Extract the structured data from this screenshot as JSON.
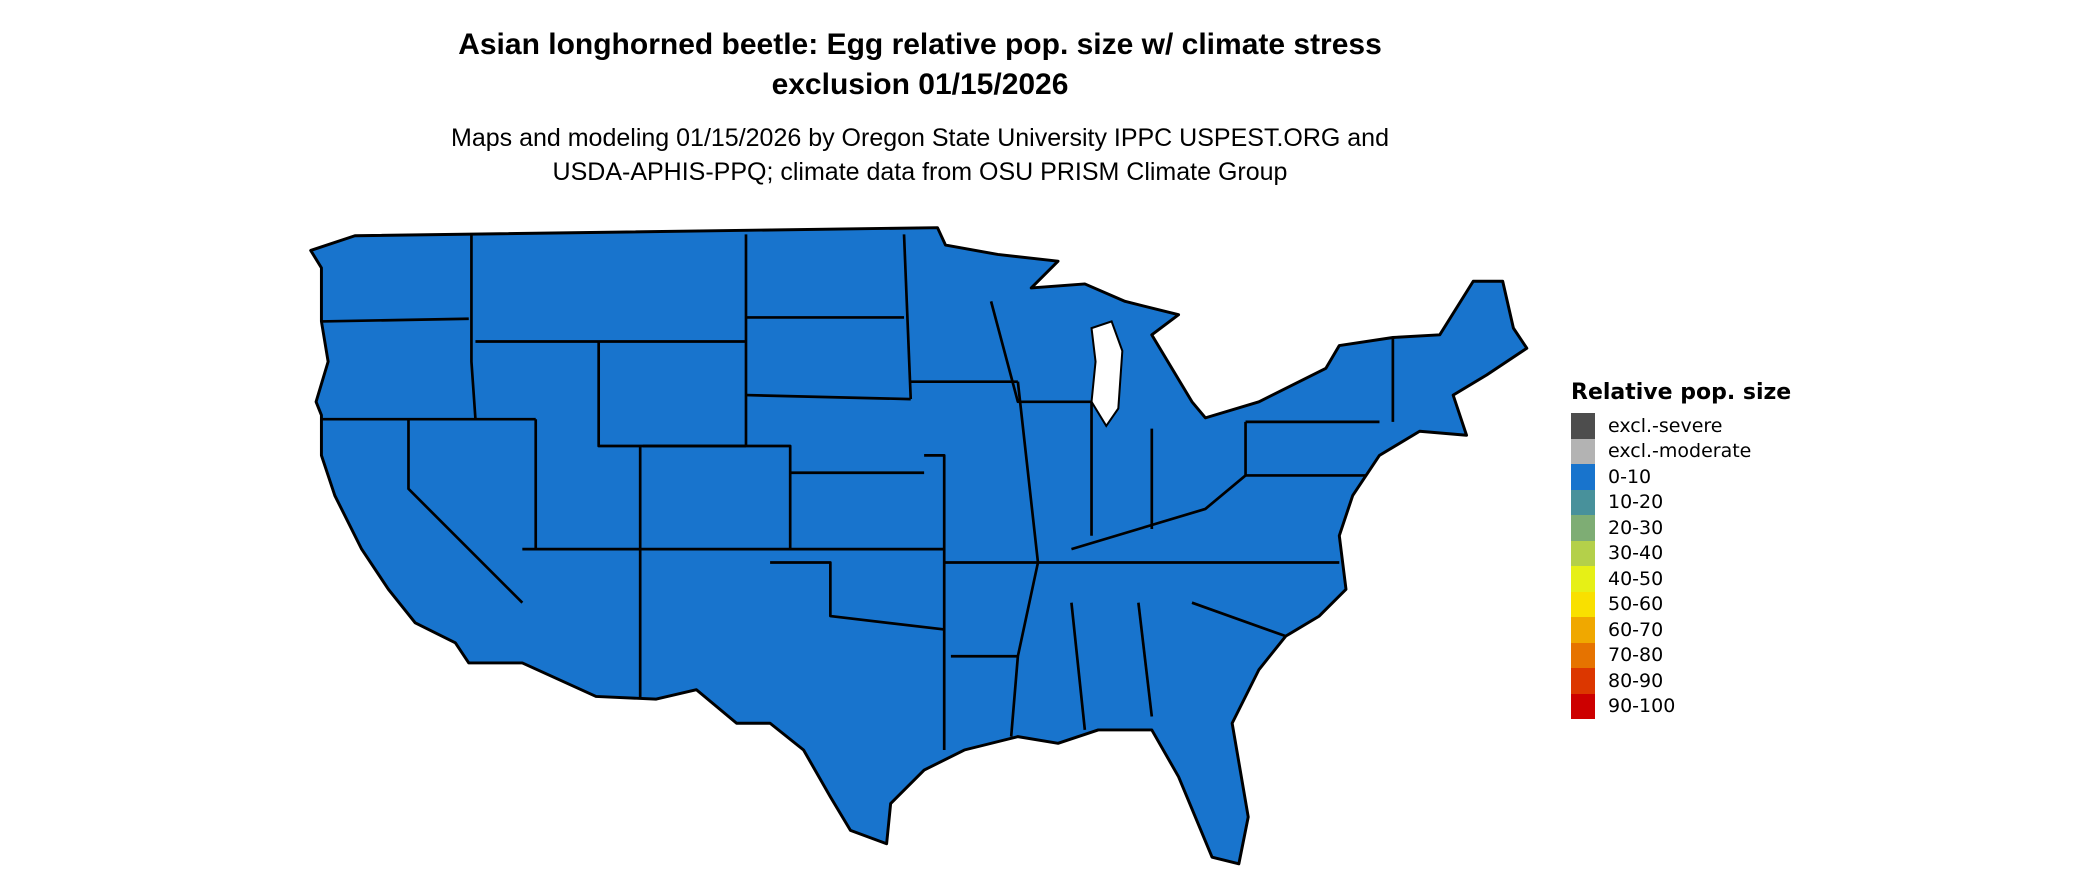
{
  "title_line1": "Asian longhorned beetle: Egg relative pop. size w/ climate stress",
  "title_line2": "exclusion 01/15/2026",
  "subtitle_line1": "Maps and modeling 01/15/2026 by Oregon State University IPPC USPEST.ORG and",
  "subtitle_line2": "USDA-APHIS-PPQ; climate data from OSU PRISM Climate Group",
  "map": {
    "region": "Contiguous United States",
    "fill_category": "0-10",
    "fill_color": "#1874CD",
    "border_color": "#000000"
  },
  "legend": {
    "title": "Relative pop. size",
    "items": [
      {
        "label": "excl.-severe",
        "color": "#4D4D4D"
      },
      {
        "label": "excl.-moderate",
        "color": "#B3B3B3"
      },
      {
        "label": "0-10",
        "color": "#1874CD"
      },
      {
        "label": "10-20",
        "color": "#48919B"
      },
      {
        "label": "20-30",
        "color": "#7EAD74"
      },
      {
        "label": "30-40",
        "color": "#B4D04A"
      },
      {
        "label": "40-50",
        "color": "#E6F016"
      },
      {
        "label": "50-60",
        "color": "#F9E000"
      },
      {
        "label": "60-70",
        "color": "#F0A800"
      },
      {
        "label": "70-80",
        "color": "#E67300"
      },
      {
        "label": "80-90",
        "color": "#DC3700"
      },
      {
        "label": "90-100",
        "color": "#CD0000"
      }
    ]
  }
}
